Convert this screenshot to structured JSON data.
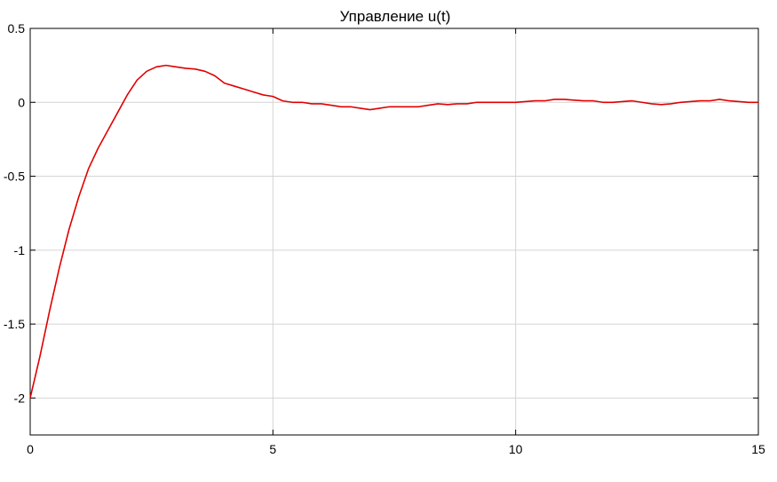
{
  "chart_data": {
    "type": "line",
    "title": "Управление u(t)",
    "xlabel": "",
    "ylabel": "",
    "xlim": [
      0,
      15
    ],
    "ylim": [
      -2.25,
      0.5
    ],
    "grid": true,
    "x_ticks": [
      0,
      5,
      10,
      15
    ],
    "y_ticks": [
      -2,
      -1.5,
      -1,
      -0.5,
      0,
      0.5
    ],
    "x_tick_labels": [
      "0",
      "5",
      "10",
      "15"
    ],
    "y_tick_labels": [
      "-2",
      "-1.5",
      "-1",
      "-0.5",
      "0",
      "0.5"
    ],
    "series": [
      {
        "color": "#e00000",
        "x": [
          0,
          0.2,
          0.4,
          0.6,
          0.8,
          1.0,
          1.2,
          1.4,
          1.6,
          1.8,
          2.0,
          2.2,
          2.4,
          2.6,
          2.8,
          3.0,
          3.2,
          3.4,
          3.6,
          3.8,
          4.0,
          4.2,
          4.4,
          4.6,
          4.8,
          5.0,
          5.2,
          5.4,
          5.6,
          5.8,
          6.0,
          6.2,
          6.4,
          6.6,
          6.8,
          7.0,
          7.2,
          7.4,
          7.6,
          7.8,
          8.0,
          8.2,
          8.4,
          8.6,
          8.8,
          9.0,
          9.2,
          9.4,
          9.6,
          9.8,
          10.0,
          10.2,
          10.4,
          10.6,
          10.8,
          11.0,
          11.2,
          11.4,
          11.6,
          11.8,
          12.0,
          12.2,
          12.4,
          12.6,
          12.8,
          13.0,
          13.2,
          13.4,
          13.6,
          13.8,
          14.0,
          14.2,
          14.4,
          14.6,
          14.8,
          15.0
        ],
        "y": [
          -2.0,
          -1.72,
          -1.41,
          -1.12,
          -0.86,
          -0.64,
          -0.45,
          -0.31,
          -0.19,
          -0.07,
          0.05,
          0.15,
          0.21,
          0.24,
          0.25,
          0.24,
          0.23,
          0.225,
          0.21,
          0.18,
          0.13,
          0.11,
          0.09,
          0.07,
          0.05,
          0.04,
          0.01,
          0.0,
          0.0,
          -0.01,
          -0.01,
          -0.02,
          -0.03,
          -0.03,
          -0.04,
          -0.05,
          -0.04,
          -0.03,
          -0.03,
          -0.03,
          -0.03,
          -0.02,
          -0.01,
          -0.015,
          -0.01,
          -0.01,
          0.0,
          0.0,
          0.0,
          0.0,
          0.0,
          0.005,
          0.01,
          0.01,
          0.02,
          0.02,
          0.015,
          0.01,
          0.01,
          0.0,
          0.0,
          0.005,
          0.01,
          0.0,
          -0.01,
          -0.015,
          -0.01,
          0.0,
          0.005,
          0.01,
          0.01,
          0.02,
          0.01,
          0.005,
          0.0,
          0.0
        ]
      }
    ]
  }
}
